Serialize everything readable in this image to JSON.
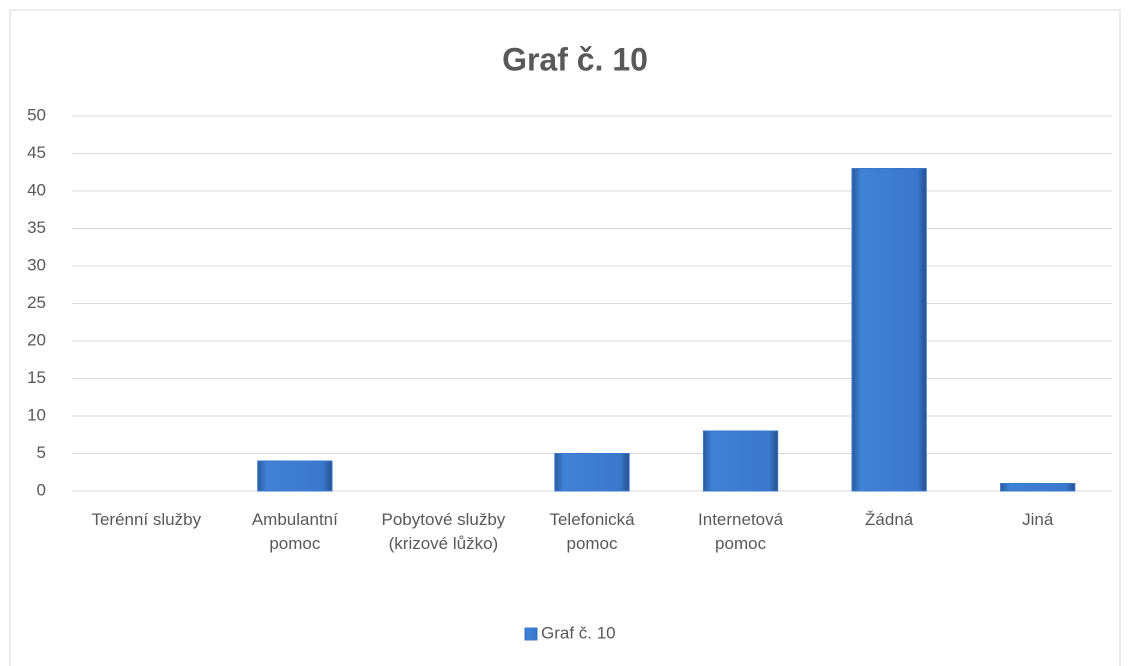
{
  "chart_data": {
    "type": "bar",
    "title": "Graf č. 10",
    "categories": [
      "Terénní služby",
      "Ambulantní pomoc",
      "Pobytové služby (krizové lůžko)",
      "Telefonická pomoc",
      "Internetová pomoc",
      "Žádná",
      "Jiná"
    ],
    "series": [
      {
        "name": "Graf č. 10",
        "color": "#3a78cc",
        "values": [
          0,
          4,
          0,
          5,
          8,
          43,
          1
        ]
      }
    ],
    "ylim": [
      0,
      50
    ],
    "yticks": [
      0,
      5,
      10,
      15,
      20,
      25,
      30,
      35,
      40,
      45,
      50
    ],
    "grid": true,
    "legend": "bottom"
  }
}
